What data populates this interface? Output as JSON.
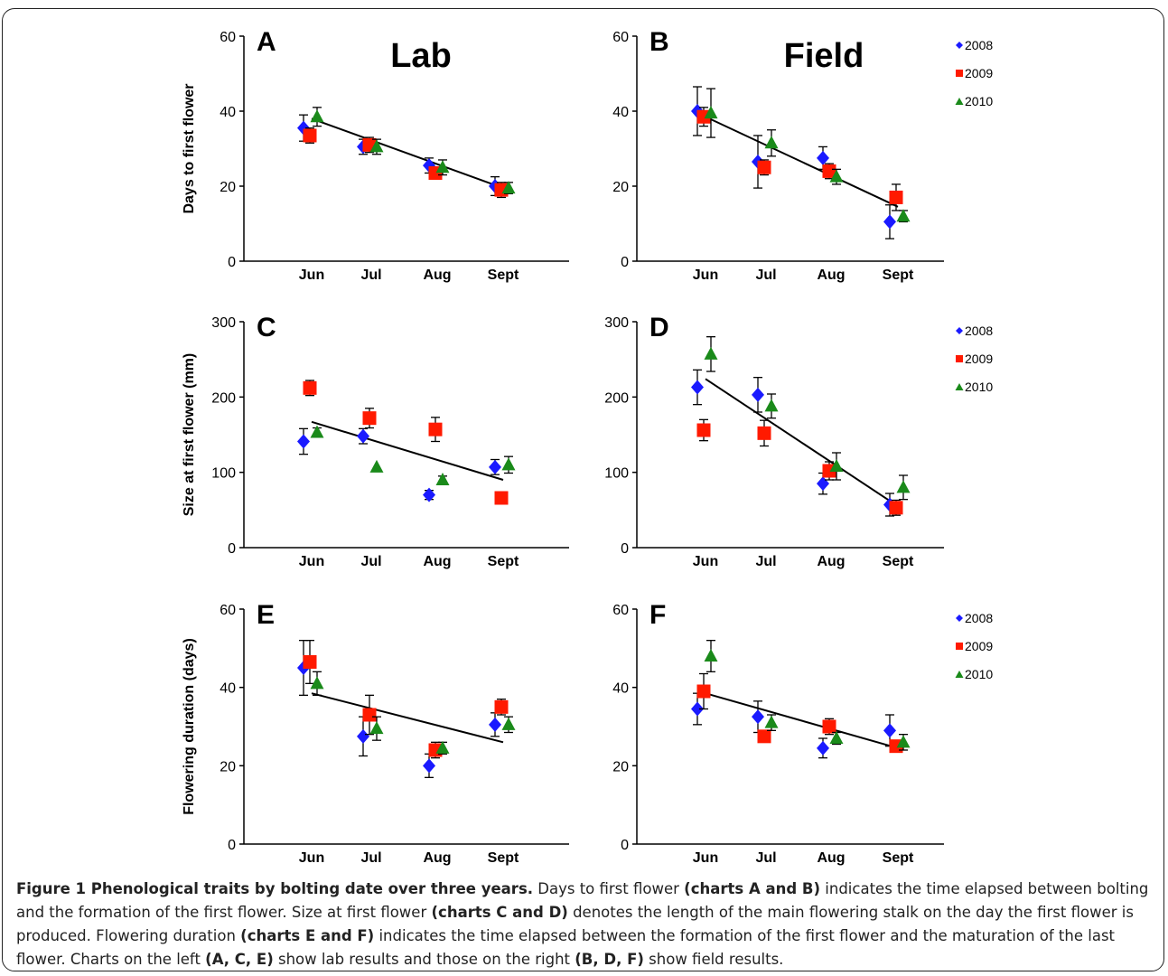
{
  "caption": {
    "title": "Figure 1 Phenological traits by bolting date over three years.",
    "p1": " Days to first flower ",
    "b1": "(charts A and B)",
    "p2": " indicates the time elapsed between bolting and the formation of the first flower. Size at first flower ",
    "b2": "(charts C and D)",
    "p3": " denotes the length of the main flowering stalk on the day the first flower is produced. Flowering duration ",
    "b3": "(charts E and F)",
    "p4": " indicates the time elapsed between the formation of the first flower and the maturation of the last flower. Charts on the left ",
    "b4": "(A, C, E)",
    "p5": " show lab results and those on the right ",
    "b5": "(B, D, F)",
    "p6": " show field results."
  },
  "colors": {
    "2008": "#1a1aff",
    "2009": "#ff1a00",
    "2010": "#1a8a1a",
    "line": "#000000"
  },
  "chart_data": [
    {
      "panel": "A",
      "title": "Lab",
      "type": "scatter",
      "ylabel": "Days to first flower",
      "ylim": [
        0,
        60
      ],
      "yticks": [
        0,
        20,
        40,
        60
      ],
      "categories": [
        "Jun",
        "Jul",
        "Aug",
        "Sept"
      ],
      "legend": null,
      "series": [
        {
          "name": "2008",
          "marker": "diamond",
          "values": [
            35.5,
            30.5,
            25.5,
            20
          ],
          "errors": [
            3.5,
            2,
            2,
            2.5
          ]
        },
        {
          "name": "2009",
          "marker": "square",
          "values": [
            33.5,
            31,
            23.5,
            19
          ],
          "errors": [
            2,
            2,
            1.5,
            2
          ]
        },
        {
          "name": "2010",
          "marker": "triangle",
          "values": [
            38.5,
            30.5,
            25,
            19.5
          ],
          "errors": [
            2.5,
            2,
            2,
            1.5
          ]
        }
      ],
      "trend": [
        38,
        19.5
      ]
    },
    {
      "panel": "B",
      "title": "Field",
      "type": "scatter",
      "ylabel": "",
      "ylim": [
        0,
        60
      ],
      "yticks": [
        0,
        20,
        40,
        60
      ],
      "categories": [
        "Jun",
        "Jul",
        "Aug",
        "Sept"
      ],
      "legend": [
        "2008",
        "2009",
        "2010"
      ],
      "series": [
        {
          "name": "2008",
          "marker": "diamond",
          "values": [
            40,
            26.5,
            27.5,
            10.5
          ],
          "errors": [
            6.5,
            7,
            3,
            4.5
          ]
        },
        {
          "name": "2009",
          "marker": "square",
          "values": [
            38.5,
            25,
            24,
            17
          ],
          "errors": [
            2.5,
            2,
            2,
            3.5
          ]
        },
        {
          "name": "2010",
          "marker": "triangle",
          "values": [
            39.5,
            31.5,
            22.5,
            12
          ],
          "errors": [
            6.5,
            3.5,
            2,
            1.5
          ]
        }
      ],
      "trend": [
        38.5,
        14.5
      ]
    },
    {
      "panel": "C",
      "title": "",
      "type": "scatter",
      "ylabel": "Size at first flower (mm)",
      "ylim": [
        0,
        300
      ],
      "yticks": [
        0,
        100,
        200,
        300
      ],
      "categories": [
        "Jun",
        "Jul",
        "Aug",
        "Sept"
      ],
      "legend": null,
      "series": [
        {
          "name": "2008",
          "marker": "diamond",
          "values": [
            141,
            148,
            70,
            107
          ],
          "errors": [
            17,
            10,
            6,
            10
          ]
        },
        {
          "name": "2009",
          "marker": "square",
          "values": [
            212,
            172,
            157,
            66
          ],
          "errors": [
            10,
            13,
            16,
            0
          ]
        },
        {
          "name": "2010",
          "marker": "triangle",
          "values": [
            153,
            107,
            90,
            110
          ],
          "errors": [
            6,
            0,
            5,
            11
          ]
        }
      ],
      "trend": [
        167,
        90
      ]
    },
    {
      "panel": "D",
      "title": "",
      "type": "scatter",
      "ylabel": "",
      "ylim": [
        0,
        300
      ],
      "yticks": [
        0,
        100,
        200,
        300
      ],
      "categories": [
        "Jun",
        "Jul",
        "Aug",
        "Sept"
      ],
      "legend": [
        "2008",
        "2009",
        "2010"
      ],
      "series": [
        {
          "name": "2008",
          "marker": "diamond",
          "values": [
            213,
            203,
            85,
            57
          ],
          "errors": [
            23,
            23,
            14,
            15
          ]
        },
        {
          "name": "2009",
          "marker": "square",
          "values": [
            156,
            152,
            102,
            53
          ],
          "errors": [
            14,
            17,
            12,
            10
          ]
        },
        {
          "name": "2010",
          "marker": "triangle",
          "values": [
            257,
            188,
            108,
            80
          ],
          "errors": [
            23,
            16,
            18,
            16
          ]
        }
      ],
      "trend": [
        224,
        55
      ]
    },
    {
      "panel": "E",
      "title": "",
      "type": "scatter",
      "ylabel": "Flowering duration (days)",
      "ylim": [
        0,
        60
      ],
      "yticks": [
        0,
        20,
        40,
        60
      ],
      "categories": [
        "Jun",
        "Jul",
        "Aug",
        "Sept"
      ],
      "legend": null,
      "series": [
        {
          "name": "2008",
          "marker": "diamond",
          "values": [
            45,
            27.5,
            20,
            30.5
          ],
          "errors": [
            7,
            5,
            3,
            3
          ]
        },
        {
          "name": "2009",
          "marker": "square",
          "values": [
            46.5,
            33,
            24,
            35
          ],
          "errors": [
            5.5,
            5,
            2,
            2
          ]
        },
        {
          "name": "2010",
          "marker": "triangle",
          "values": [
            41,
            29.5,
            24.5,
            30.5
          ],
          "errors": [
            3,
            3,
            1.5,
            2
          ]
        }
      ],
      "trend": [
        38.5,
        26
      ]
    },
    {
      "panel": "F",
      "title": "",
      "type": "scatter",
      "ylabel": "",
      "ylim": [
        0,
        60
      ],
      "yticks": [
        0,
        20,
        40,
        60
      ],
      "categories": [
        "Jun",
        "Jul",
        "Aug",
        "Sept"
      ],
      "legend": [
        "2008",
        "2009",
        "2010"
      ],
      "series": [
        {
          "name": "2008",
          "marker": "diamond",
          "values": [
            34.5,
            32.5,
            24.5,
            29
          ],
          "errors": [
            4,
            4,
            2.5,
            4
          ]
        },
        {
          "name": "2009",
          "marker": "square",
          "values": [
            39,
            27.5,
            30,
            25
          ],
          "errors": [
            4.5,
            1.5,
            2,
            1
          ]
        },
        {
          "name": "2010",
          "marker": "triangle",
          "values": [
            48,
            31,
            27,
            26
          ],
          "errors": [
            4,
            2,
            1.5,
            2
          ]
        }
      ],
      "trend": [
        38.5,
        24.5
      ]
    }
  ]
}
